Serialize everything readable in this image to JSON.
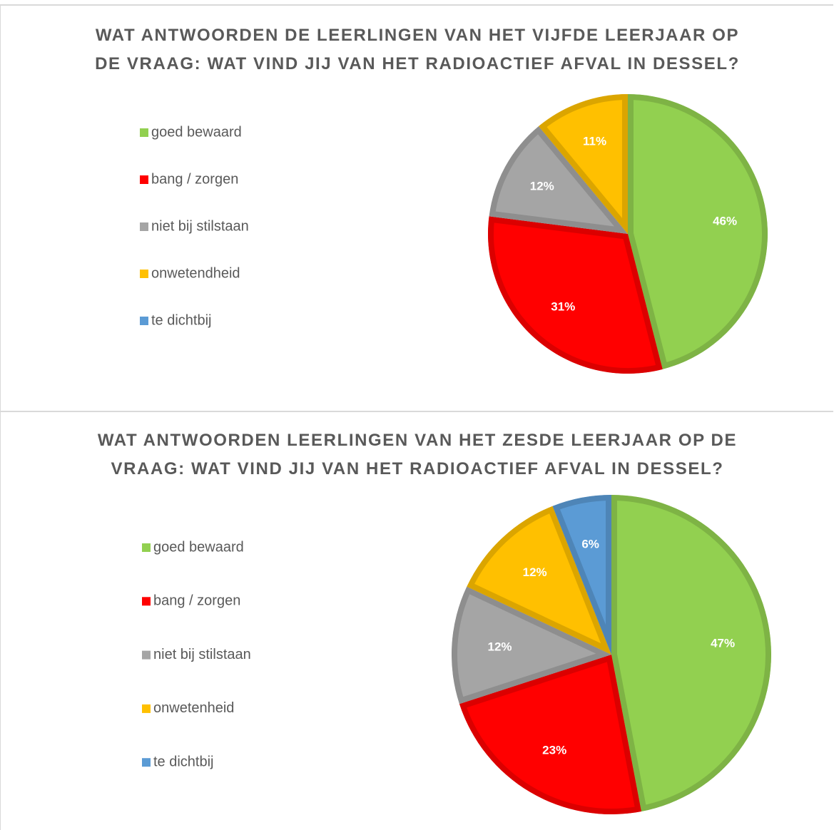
{
  "chart_data": [
    {
      "type": "pie",
      "title": "WAT ANTWOORDEN DE LEERLINGEN VAN HET VIJFDE LEERJAAR OP DE VRAAG: WAT VIND JIJ VAN HET RADIOACTIEF AFVAL IN DESSEL?",
      "categories": [
        "goed bewaard",
        "bang / zorgen",
        "niet bij stilstaan",
        "onwetendheid",
        "te dichtbij"
      ],
      "values": [
        46,
        31,
        12,
        11,
        0
      ],
      "value_labels": [
        "46%",
        "31%",
        "12%",
        "11%",
        null
      ],
      "colors": [
        "#92d050",
        "#ff0000",
        "#a5a5a5",
        "#ffc000",
        "#5b9bd5"
      ],
      "legend": "left"
    },
    {
      "type": "pie",
      "title": "WAT ANTWOORDEN LEERLINGEN VAN HET ZESDE LEERJAAR OP DE VRAAG: WAT VIND JIJ VAN HET RADIOACTIEF AFVAL IN DESSEL?",
      "categories": [
        "goed bewaard",
        "bang / zorgen",
        "niet bij stilstaan",
        "onwetenheid",
        "te dichtbij"
      ],
      "values": [
        47,
        23,
        12,
        12,
        6
      ],
      "value_labels": [
        "47%",
        "23%",
        "12%",
        "12%",
        "6%"
      ],
      "colors": [
        "#92d050",
        "#ff0000",
        "#a5a5a5",
        "#ffc000",
        "#5b9bd5"
      ],
      "legend": "left"
    }
  ]
}
